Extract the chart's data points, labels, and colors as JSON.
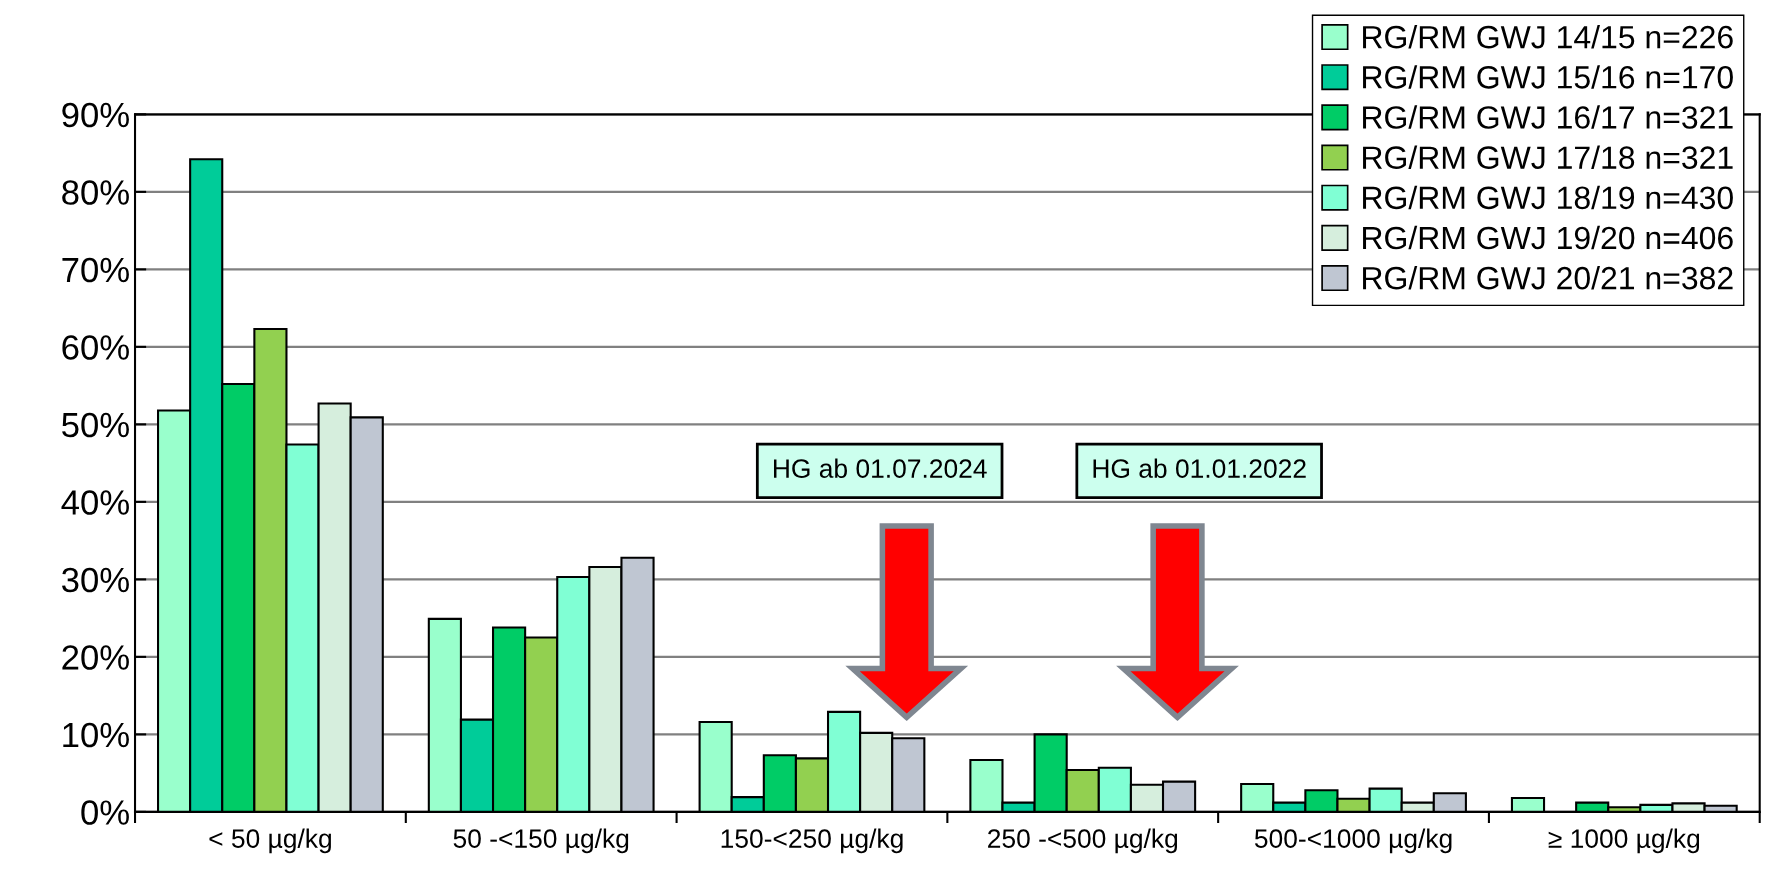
{
  "chart_data": {
    "type": "bar",
    "categories": [
      "< 50 µg/kg",
      "50 -<150 µg/kg",
      "150-<250 µg/kg",
      "250 -<500 µg/kg",
      "500-<1000 µg/kg",
      "≥ 1000 µg/kg"
    ],
    "series": [
      {
        "name": "RG/RM GWJ 14/15 n=226",
        "color": "#99ffcc",
        "values": [
          51.8,
          24.9,
          11.6,
          6.7,
          3.6,
          1.8
        ]
      },
      {
        "name": "RG/RM GWJ 15/16 n=170",
        "color": "#00cc99",
        "values": [
          84.2,
          11.9,
          1.9,
          1.2,
          1.2,
          null
        ]
      },
      {
        "name": "RG/RM GWJ 16/17 n=321",
        "color": "#00cc66",
        "values": [
          55.2,
          23.8,
          7.3,
          10.0,
          2.8,
          1.2
        ]
      },
      {
        "name": "RG/RM GWJ 17/18 n=321",
        "color": "#92d050",
        "values": [
          62.3,
          22.5,
          6.9,
          5.4,
          1.7,
          0.6
        ]
      },
      {
        "name": "RG/RM GWJ 18/19 n=430",
        "color": "#80ffd4",
        "values": [
          47.4,
          30.3,
          12.9,
          5.7,
          3.0,
          0.9
        ]
      },
      {
        "name": "RG/RM GWJ 19/20 n=406",
        "color": "#d6eedd",
        "values": [
          52.7,
          31.6,
          10.2,
          3.5,
          1.2,
          1.1
        ]
      },
      {
        "name": "RG/RM GWJ 20/21 n=382",
        "color": "#bfc6d2",
        "values": [
          50.9,
          32.8,
          9.5,
          3.9,
          2.4,
          0.8
        ]
      }
    ],
    "ylim": [
      0,
      90
    ],
    "yticks": [
      {
        "value": 0,
        "label": "0%"
      },
      {
        "value": 10,
        "label": "10%"
      },
      {
        "value": 20,
        "label": "20%"
      },
      {
        "value": 30,
        "label": "30%"
      },
      {
        "value": 40,
        "label": "40%"
      },
      {
        "value": 50,
        "label": "50%"
      },
      {
        "value": 60,
        "label": "60%"
      },
      {
        "value": 70,
        "label": "70%"
      },
      {
        "value": 80,
        "label": "80%"
      },
      {
        "value": 90,
        "label": "90%"
      }
    ],
    "grid": "y",
    "legend": "top right",
    "annotations": [
      "HG ab 01.07.2024",
      "HG ab 01.01.2022"
    ]
  }
}
